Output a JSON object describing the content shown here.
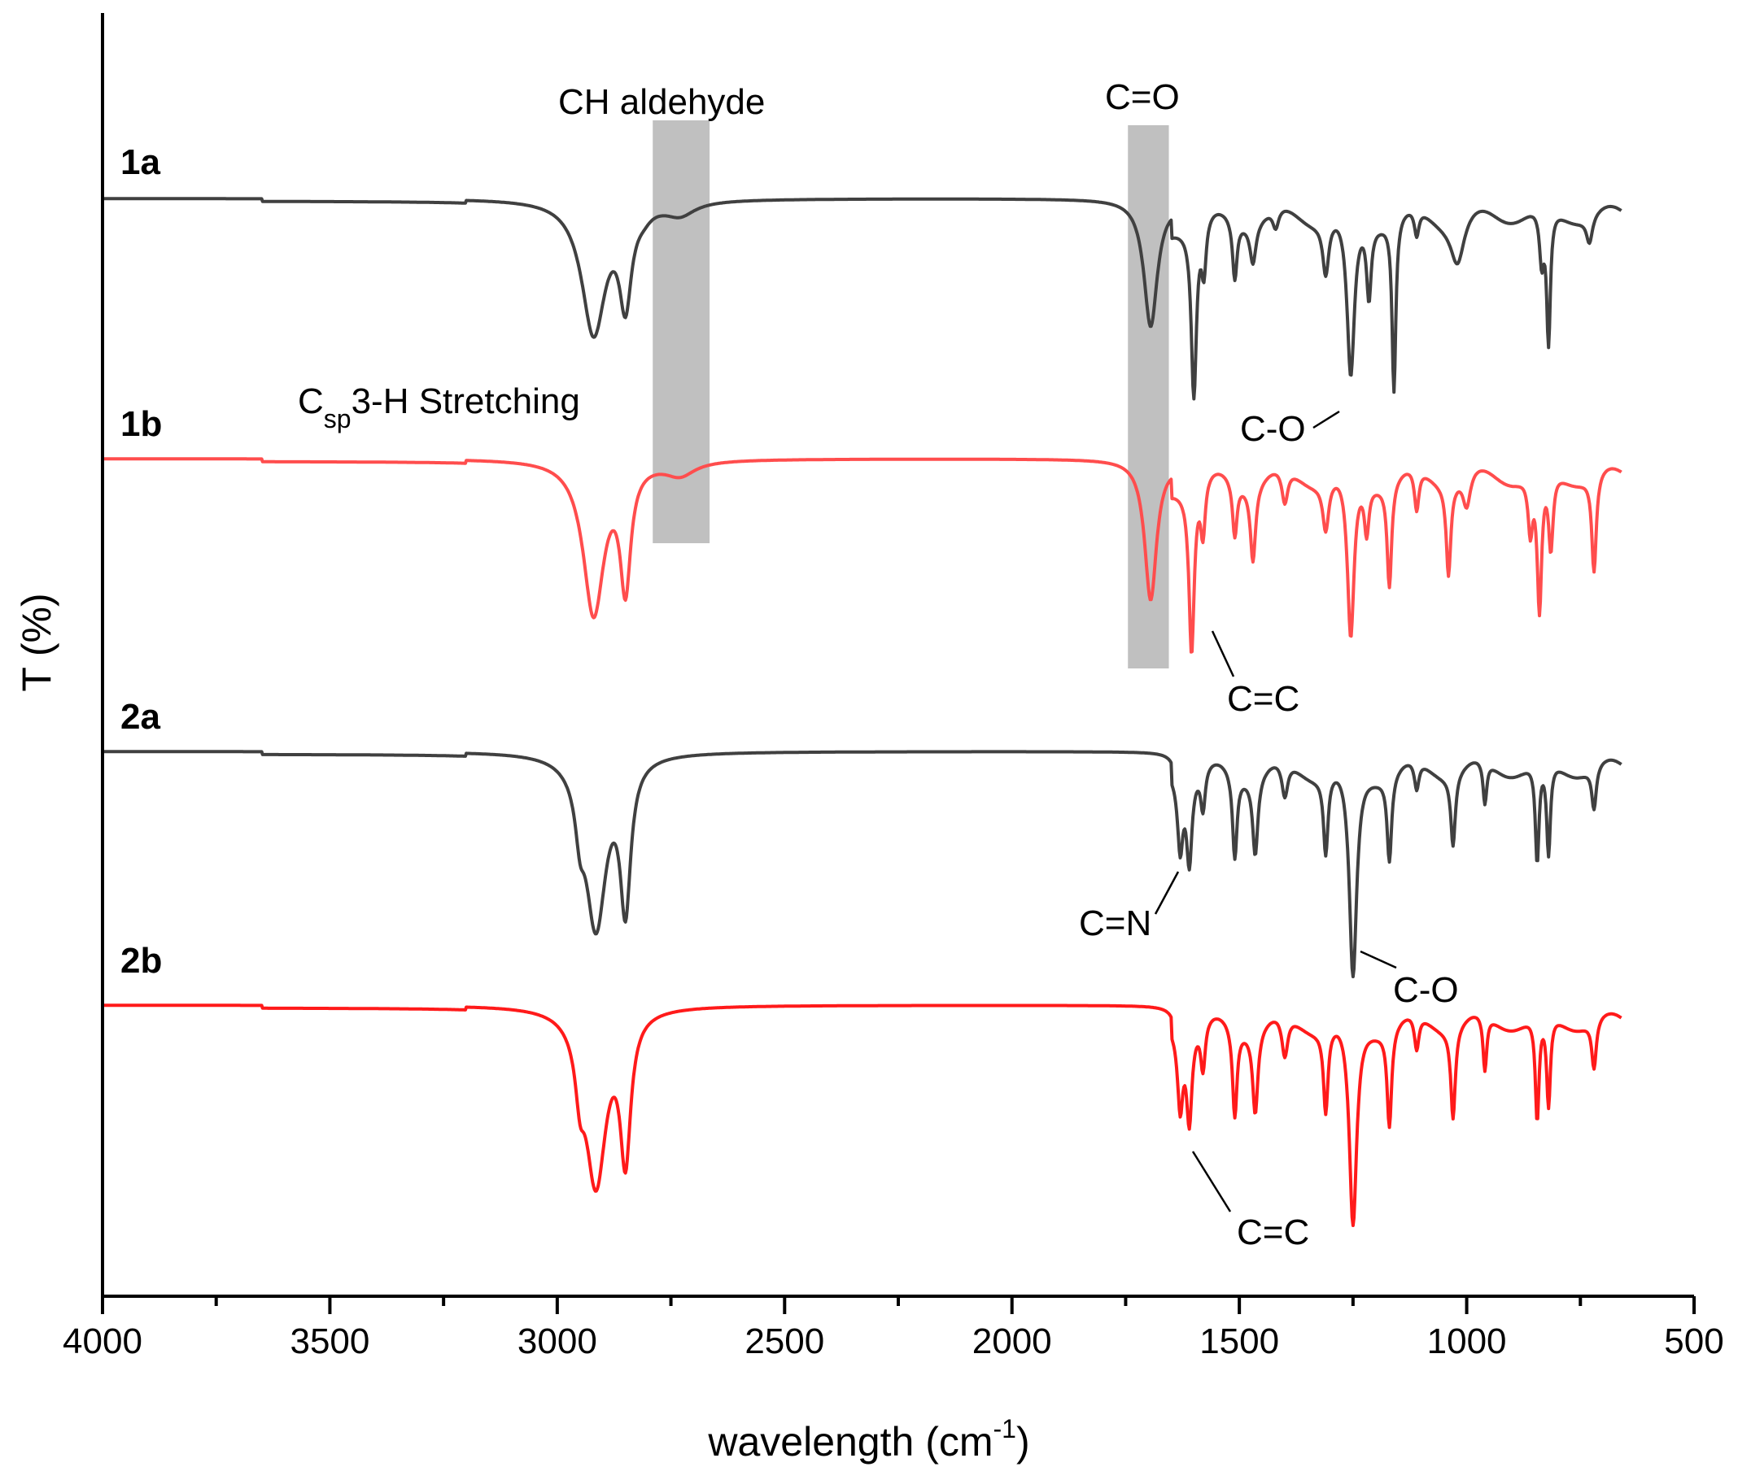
{
  "chart_data": {
    "type": "line",
    "title": "",
    "xlabel": "wavelength (cm",
    "xlabel_sup": "-1",
    "xlabel_end": ")",
    "ylabel": "T (%)",
    "xlim": [
      4000,
      500
    ],
    "xticks": [
      4000,
      3500,
      3000,
      2500,
      2000,
      1500,
      1000,
      500
    ],
    "yticks_shown": false,
    "grid": false,
    "legend": "none",
    "colors": {
      "black": "#404040",
      "red": "#ff1a1a",
      "band": "#c0c0c0"
    },
    "series": [
      {
        "name": "1a",
        "color": "#404040",
        "baseline": 100,
        "peaks": [
          [
            2920,
            20,
            32
          ],
          [
            2850,
            14,
            16
          ],
          [
            2730,
            2,
            40
          ],
          [
            2810,
            1,
            20
          ],
          [
            1695,
            19,
            18
          ],
          [
            1600,
            26,
            7
          ],
          [
            1578,
            8,
            6
          ],
          [
            1510,
            9,
            6
          ],
          [
            1470,
            6,
            8
          ],
          [
            1420,
            3,
            8
          ],
          [
            1310,
            8,
            8
          ],
          [
            1255,
            25,
            10
          ],
          [
            1215,
            11,
            6
          ],
          [
            1160,
            26,
            5
          ],
          [
            1110,
            4,
            6
          ],
          [
            1020,
            7,
            18
          ],
          [
            835,
            8,
            6
          ],
          [
            820,
            20,
            5
          ],
          [
            730,
            4,
            8
          ]
        ]
      },
      {
        "name": "1b",
        "color": "#ff4d4d",
        "baseline": 100,
        "peaks": [
          [
            2920,
            22,
            28
          ],
          [
            2850,
            17,
            14
          ],
          [
            2730,
            2,
            40
          ],
          [
            1695,
            20,
            16
          ],
          [
            1605,
            24,
            7
          ],
          [
            1580,
            8,
            6
          ],
          [
            1510,
            8,
            6
          ],
          [
            1470,
            11,
            7
          ],
          [
            1400,
            5,
            8
          ],
          [
            1310,
            7,
            8
          ],
          [
            1255,
            24,
            9
          ],
          [
            1220,
            7,
            6
          ],
          [
            1170,
            15,
            6
          ],
          [
            1110,
            6,
            6
          ],
          [
            1040,
            13,
            6
          ],
          [
            1000,
            5,
            10
          ],
          [
            860,
            8,
            6
          ],
          [
            840,
            20,
            6
          ],
          [
            815,
            11,
            6
          ],
          [
            720,
            14,
            6
          ]
        ]
      },
      {
        "name": "2a",
        "color": "#404040",
        "baseline": 100,
        "peaks": [
          [
            2915,
            24,
            28
          ],
          [
            2850,
            20,
            14
          ],
          [
            2950,
            6,
            12
          ],
          [
            1630,
            10,
            7
          ],
          [
            1610,
            12,
            7
          ],
          [
            1580,
            6,
            6
          ],
          [
            1510,
            12,
            6
          ],
          [
            1465,
            11,
            7
          ],
          [
            1400,
            5,
            8
          ],
          [
            1310,
            11,
            6
          ],
          [
            1250,
            30,
            10
          ],
          [
            1170,
            12,
            6
          ],
          [
            1110,
            4,
            6
          ],
          [
            1030,
            10,
            6
          ],
          [
            960,
            6,
            5
          ],
          [
            845,
            14,
            5
          ],
          [
            820,
            13,
            5
          ],
          [
            720,
            6,
            6
          ]
        ]
      },
      {
        "name": "2b",
        "color": "#ff1a1a",
        "baseline": 100,
        "peaks": [
          [
            2915,
            25,
            28
          ],
          [
            2850,
            20,
            14
          ],
          [
            2950,
            7,
            12
          ],
          [
            1630,
            11,
            7
          ],
          [
            1610,
            13,
            7
          ],
          [
            1580,
            7,
            6
          ],
          [
            1510,
            13,
            6
          ],
          [
            1465,
            12,
            7
          ],
          [
            1400,
            6,
            8
          ],
          [
            1310,
            12,
            6
          ],
          [
            1250,
            30,
            10
          ],
          [
            1170,
            14,
            6
          ],
          [
            1110,
            5,
            6
          ],
          [
            1030,
            13,
            6
          ],
          [
            960,
            8,
            5
          ],
          [
            845,
            15,
            5
          ],
          [
            820,
            13,
            5
          ],
          [
            720,
            7,
            6
          ]
        ]
      }
    ],
    "annotations": {
      "ch_aldehyde": "CH aldehyde",
      "c_eq_o": "C=O",
      "csp3_main": "C",
      "csp3_sub": "sp",
      "csp3_rest": "3-H Stretching",
      "c_o_1": "C-O",
      "c_eq_c_1": "C=C",
      "c_eq_n": "C=N",
      "c_o_2": "C-O",
      "c_eq_c_2": "C=C"
    },
    "highlight_bands": [
      {
        "label": "CH aldehyde",
        "from": 2790,
        "to": 2665
      },
      {
        "label": "C=O",
        "from": 1745,
        "to": 1655
      }
    ]
  }
}
